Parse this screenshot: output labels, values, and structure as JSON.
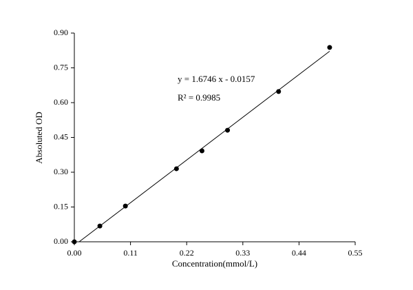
{
  "chart_data": {
    "type": "scatter",
    "xlabel": "Concentration(mmol/L)",
    "ylabel": "Absoluted OD",
    "annotations": [
      "y = 1.6746 x - 0.0157",
      "R² = 0.9985"
    ],
    "x": [
      0,
      0.05,
      0.1,
      0.2,
      0.25,
      0.3,
      0.4,
      0.5
    ],
    "values": [
      0,
      0.068,
      0.154,
      0.315,
      0.392,
      0.481,
      0.648,
      0.838
    ],
    "color": "#000000",
    "fit": {
      "x": [
        0.0094,
        0.5
      ],
      "values": [
        0,
        0.8216
      ],
      "color": "#000000"
    },
    "xlim": [
      0,
      0.55
    ],
    "xticks": [
      {
        "value": 0,
        "label": "0.00"
      },
      {
        "value": 0.11,
        "label": "0.11"
      },
      {
        "value": 0.22,
        "label": "0.22"
      },
      {
        "value": 0.33,
        "label": "0.33"
      },
      {
        "value": 0.44,
        "label": "0.44"
      },
      {
        "value": 0.55,
        "label": "0.55"
      }
    ],
    "ylim": [
      0,
      0.9
    ],
    "yticks": [
      {
        "value": 0,
        "label": "0.00"
      },
      {
        "value": 0.15,
        "label": "0.15"
      },
      {
        "value": 0.3,
        "label": "0.30"
      },
      {
        "value": 0.45,
        "label": "0.45"
      },
      {
        "value": 0.6,
        "label": "0.60"
      },
      {
        "value": 0.75,
        "label": "0.75"
      },
      {
        "value": 0.9,
        "label": "0.90"
      }
    ],
    "grid": false
  }
}
